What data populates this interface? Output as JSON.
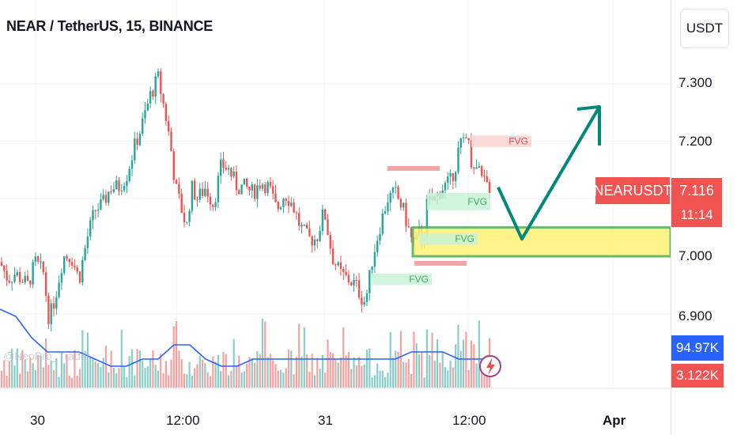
{
  "header": {
    "title": "NEAR / TetherUS, 15, BINANCE"
  },
  "price_scale": {
    "currency": "USDT",
    "ticks": [
      "7.300",
      "7.200",
      "7.100",
      "7.000",
      "6.900"
    ],
    "symbol_tag": "NEARUSDT",
    "last_price": "7.116",
    "countdown": "11:14",
    "ma_value": "94.97K",
    "volume_value": "3.122K"
  },
  "time_scale": {
    "labels": [
      "30",
      "12:00",
      "31",
      "12:00",
      "Apr"
    ]
  },
  "watermark": "@NeoPro_Trader",
  "colors": {
    "up": "#26a69a",
    "down": "#ef5350",
    "ma": "#2962ff",
    "zone": "#fff176",
    "zone_border": "#4caf50",
    "arrow": "#00897b",
    "tag": "#f05350"
  },
  "chart_data": {
    "type": "candlestick",
    "title": "NEAR / TetherUS, 15, BINANCE",
    "ylim": [
      6.85,
      7.36
    ],
    "yticks": [
      6.9,
      7.0,
      7.1,
      7.2,
      7.3
    ],
    "x_labels": [
      "30",
      "12:00",
      "31",
      "12:00",
      "Apr"
    ],
    "path_price": [
      [
        0,
        6.99
      ],
      [
        10,
        6.96
      ],
      [
        20,
        6.97
      ],
      [
        35,
        6.95
      ],
      [
        45,
        6.99
      ],
      [
        55,
        6.97
      ],
      [
        62,
        6.89
      ],
      [
        70,
        6.93
      ],
      [
        80,
        7.0
      ],
      [
        90,
        7.0
      ],
      [
        100,
        6.96
      ],
      [
        110,
        7.03
      ],
      [
        120,
        7.08
      ],
      [
        130,
        7.09
      ],
      [
        140,
        7.12
      ],
      [
        150,
        7.12
      ],
      [
        160,
        7.14
      ],
      [
        170,
        7.19
      ],
      [
        180,
        7.23
      ],
      [
        190,
        7.28
      ],
      [
        200,
        7.31
      ],
      [
        210,
        7.24
      ],
      [
        215,
        7.2
      ],
      [
        222,
        7.12
      ],
      [
        230,
        7.08
      ],
      [
        236,
        7.05
      ],
      [
        242,
        7.12
      ],
      [
        250,
        7.1
      ],
      [
        260,
        7.12
      ],
      [
        270,
        7.09
      ],
      [
        280,
        7.16
      ],
      [
        290,
        7.15
      ],
      [
        300,
        7.12
      ],
      [
        310,
        7.12
      ],
      [
        320,
        7.11
      ],
      [
        330,
        7.13
      ],
      [
        340,
        7.12
      ],
      [
        350,
        7.08
      ],
      [
        360,
        7.11
      ],
      [
        370,
        7.09
      ],
      [
        380,
        7.05
      ],
      [
        390,
        7.03
      ],
      [
        400,
        7.03
      ],
      [
        410,
        7.08
      ],
      [
        420,
        7.0
      ],
      [
        430,
        6.97
      ],
      [
        440,
        6.96
      ],
      [
        450,
        6.95
      ],
      [
        460,
        6.92
      ],
      [
        465,
        6.94
      ],
      [
        470,
        6.99
      ],
      [
        480,
        7.05
      ],
      [
        490,
        7.1
      ],
      [
        500,
        7.11
      ],
      [
        510,
        7.08
      ],
      [
        520,
        7.03
      ],
      [
        525,
        7.02
      ],
      [
        530,
        7.04
      ],
      [
        535,
        7.02
      ],
      [
        540,
        7.09
      ],
      [
        550,
        7.1
      ],
      [
        560,
        7.12
      ],
      [
        570,
        7.13
      ],
      [
        580,
        7.18
      ],
      [
        590,
        7.22
      ],
      [
        595,
        7.17
      ],
      [
        600,
        7.16
      ],
      [
        610,
        7.13
      ],
      [
        620,
        7.12
      ]
    ],
    "ma_path": [
      [
        0,
        6.91
      ],
      [
        20,
        6.9
      ],
      [
        40,
        6.87
      ],
      [
        60,
        6.85
      ],
      [
        80,
        6.85
      ],
      [
        100,
        6.85
      ],
      [
        120,
        6.84
      ],
      [
        140,
        6.83
      ],
      [
        160,
        6.83
      ],
      [
        180,
        6.84
      ],
      [
        200,
        6.84
      ],
      [
        220,
        6.86
      ],
      [
        240,
        6.86
      ],
      [
        260,
        6.84
      ],
      [
        280,
        6.83
      ],
      [
        300,
        6.83
      ],
      [
        320,
        6.84
      ],
      [
        340,
        6.84
      ],
      [
        360,
        6.84
      ],
      [
        380,
        6.84
      ],
      [
        400,
        6.84
      ],
      [
        420,
        6.84
      ],
      [
        440,
        6.84
      ],
      [
        460,
        6.84
      ],
      [
        480,
        6.84
      ],
      [
        500,
        6.84
      ],
      [
        520,
        6.85
      ],
      [
        540,
        6.85
      ],
      [
        560,
        6.85
      ],
      [
        580,
        6.84
      ],
      [
        600,
        6.84
      ],
      [
        620,
        6.84
      ]
    ],
    "fvg_zones": [
      {
        "label": "FVG",
        "color": "down",
        "x": [
          596,
          672
        ],
        "y": [
          7.19,
          7.21
        ]
      },
      {
        "label": "FVG",
        "color": "up",
        "x": [
          540,
          620
        ],
        "y": [
          7.08,
          7.11
        ]
      },
      {
        "label": "FVG",
        "color": "up",
        "x": [
          530,
          604
        ],
        "y": [
          7.02,
          7.04
        ]
      },
      {
        "label": "FVG",
        "color": "up",
        "x": [
          470,
          546
        ],
        "y": [
          6.95,
          6.97
        ]
      }
    ],
    "demand_zone": {
      "x": [
        522,
        848
      ],
      "y": [
        7.0,
        7.05
      ]
    },
    "projection": [
      [
        630,
        7.12
      ],
      [
        660,
        7.03
      ],
      [
        758,
        7.26
      ]
    ]
  }
}
